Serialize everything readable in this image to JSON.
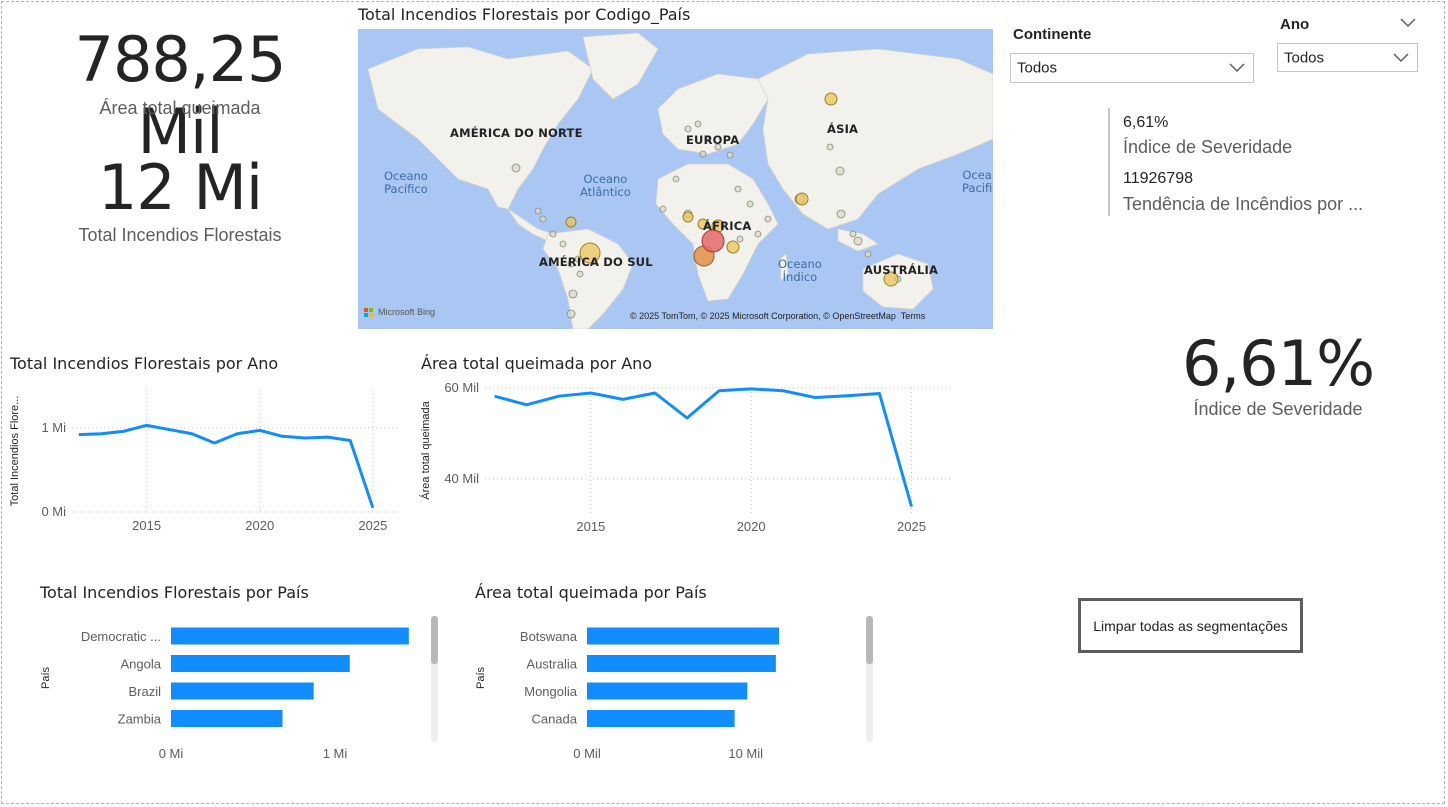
{
  "kpis": {
    "area_total": {
      "value": "788,25 Mil",
      "label": "Área total queimada"
    },
    "incendios_total": {
      "value": "12 Mi",
      "label": "Total Incendios Florestais"
    },
    "severidade": {
      "value": "6,61%",
      "label": "Índice de Severidade"
    }
  },
  "map": {
    "title": "Total Incendios Florestais por Codigo_País",
    "continents": [
      "AMÉRICA DO NORTE",
      "EUROPA",
      "ÁSIA",
      "ÁFRICA",
      "AMÉRICA DO SUL",
      "AUSTRÁLIA"
    ],
    "oceans": {
      "pacific": "Oceano\nPacífico",
      "atlantic": "Oceano\nAtlântico",
      "indian": "Oceano\nÍndico",
      "pacific_east": "Ocea\nPacifi"
    },
    "attribution": "© 2025 TomTom, © 2025 Microsoft Corporation, © OpenStreetMap  Terms",
    "bing_label": "Microsoft Bing",
    "bubble_colors": {
      "small": "#d9d9c8",
      "medium": "#e8c65a",
      "large_orange": "#e08a3c",
      "large_red": "#e36a6a"
    }
  },
  "slicers": {
    "continente": {
      "title": "Continente",
      "value": "Todos"
    },
    "ano": {
      "title": "Ano",
      "value": "Todos"
    }
  },
  "multi_card": {
    "row1_value": "6,61%",
    "row1_label": "Índice de Severidade",
    "row2_value": "11926798",
    "row2_label": "Tendência de Incêndios por ..."
  },
  "clear_button": {
    "label": "Limpar todas as segmentações"
  },
  "accent_color": "#118dff",
  "chart_data": [
    {
      "type": "line",
      "title": "Total Incendios Florestais por Ano",
      "ylabel": "Total Incendios Flore...",
      "xlabel": "",
      "x": [
        2012,
        2013,
        2014,
        2015,
        2016,
        2017,
        2018,
        2019,
        2020,
        2021,
        2022,
        2023,
        2024,
        2025
      ],
      "values": [
        0.92,
        0.93,
        0.96,
        1.03,
        0.98,
        0.93,
        0.82,
        0.93,
        0.97,
        0.9,
        0.88,
        0.89,
        0.85,
        0.05
      ],
      "xticks": [
        "2015",
        "2020",
        "2025"
      ],
      "yticks": [
        "0 Mi",
        "1 Mi"
      ],
      "ylim": [
        0,
        1.45
      ],
      "xlim": [
        2011.7,
        2026.2
      ]
    },
    {
      "type": "line",
      "title": "Área total queimada por Ano",
      "ylabel": "Área total queimada",
      "xlabel": "",
      "x": [
        2012,
        2013,
        2014,
        2015,
        2016,
        2017,
        2018,
        2019,
        2020,
        2021,
        2022,
        2023,
        2024,
        2025
      ],
      "values": [
        58.2,
        56.3,
        58.2,
        58.9,
        57.5,
        58.9,
        53.4,
        59.4,
        59.8,
        59.4,
        57.9,
        58.3,
        58.8,
        33.9
      ],
      "xticks": [
        "2015",
        "2020",
        "2025"
      ],
      "yticks": [
        "40 Mil",
        "60 Mil"
      ],
      "ylim": [
        32.5,
        60
      ],
      "xlim": [
        2011.7,
        2026.2
      ]
    },
    {
      "type": "bar",
      "title": "Total Incendios Florestais por País",
      "ylabel": "País",
      "categories": [
        "Democratic ...",
        "Angola",
        "Brazil",
        "Zambia"
      ],
      "values": [
        1.45,
        1.09,
        0.87,
        0.68
      ],
      "xticks": [
        "0 Mi",
        "1 Mi"
      ],
      "xlim": [
        0,
        1.5
      ]
    },
    {
      "type": "bar",
      "title": "Área total queimada por País",
      "ylabel": "País",
      "categories": [
        "Botswana",
        "Australia",
        "Mongolia",
        "Canada"
      ],
      "values": [
        12.1,
        11.9,
        10.1,
        9.3
      ],
      "xticks": [
        "0 Mil",
        "10 Mil"
      ],
      "xlim": [
        0,
        15.5
      ]
    }
  ]
}
